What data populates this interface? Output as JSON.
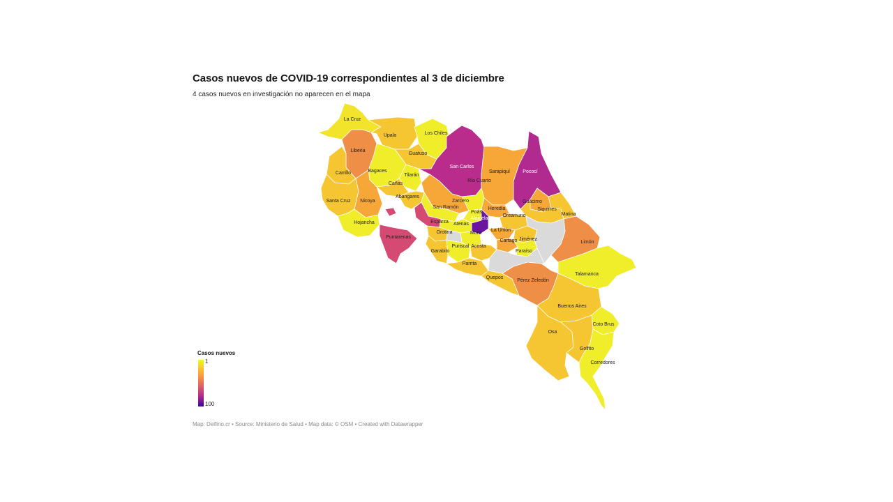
{
  "header": {
    "title": "Casos nuevos de COVID-19 correspondientes al 3 de diciembre",
    "subtitle": "4 casos nuevos en investigación no aparecen en el mapa"
  },
  "legend": {
    "title": "Casos nuevos",
    "min": "1",
    "max": "100",
    "colors": [
      "#f0f921",
      "#fca636",
      "#e16462",
      "#b12a90",
      "#3b049a"
    ]
  },
  "footer": {
    "text": "Map: Delfino.cr • Source: Ministerio de Salud • Map data: © OSM • Created with Datawrapper"
  },
  "map": {
    "cantons": [
      {
        "key": "la_cruz",
        "name": "La Cruz"
      },
      {
        "key": "upala",
        "name": "Upala"
      },
      {
        "key": "los_chiles",
        "name": "Los Chiles"
      },
      {
        "key": "liberia",
        "name": "Liberia"
      },
      {
        "key": "guatuso",
        "name": "Guatuso"
      },
      {
        "key": "san_carlos",
        "name": "San Carlos"
      },
      {
        "key": "sarapiqui",
        "name": "Sarapiquí"
      },
      {
        "key": "pococi",
        "name": "Pococí"
      },
      {
        "key": "carrillo",
        "name": "Carrillo"
      },
      {
        "key": "bagaces",
        "name": "Bagaces"
      },
      {
        "key": "tilaran",
        "name": "Tilarán"
      },
      {
        "key": "canas",
        "name": "Cañas"
      },
      {
        "key": "rio_cuarto",
        "name": "Río Cuarto"
      },
      {
        "key": "santa_cruz",
        "name": "Santa Cruz"
      },
      {
        "key": "nicoya",
        "name": "Nicoya"
      },
      {
        "key": "abangares",
        "name": "Abangares"
      },
      {
        "key": "zarcero",
        "name": "Zarcero"
      },
      {
        "key": "guacimo",
        "name": "Guácimo"
      },
      {
        "key": "san_ramon",
        "name": "San Ramón"
      },
      {
        "key": "heredia",
        "name": "Heredia"
      },
      {
        "key": "siquirres",
        "name": "Siquirres"
      },
      {
        "key": "poas",
        "name": "Poás"
      },
      {
        "key": "matina",
        "name": "Matina"
      },
      {
        "key": "hojancha",
        "name": "Hojancha"
      },
      {
        "key": "alajuela",
        "name": "Alajuela"
      },
      {
        "key": "oreamuno",
        "name": "Oreamuno"
      },
      {
        "key": "esparza",
        "name": "Esparza"
      },
      {
        "key": "atenas",
        "name": "Atenas"
      },
      {
        "key": "la_union",
        "name": "La Unión"
      },
      {
        "key": "orotina",
        "name": "Orotina"
      },
      {
        "key": "mora",
        "name": "Mora"
      },
      {
        "key": "puntarenas",
        "name": "Puntarenas"
      },
      {
        "key": "jimenez",
        "name": "Jiménez"
      },
      {
        "key": "cartago",
        "name": "Cartago"
      },
      {
        "key": "limon",
        "name": "Limón"
      },
      {
        "key": "puriscal",
        "name": "Puriscal"
      },
      {
        "key": "acosta",
        "name": "Acosta"
      },
      {
        "key": "paraiso",
        "name": "Paraíso"
      },
      {
        "key": "garabito",
        "name": "Garabito"
      },
      {
        "key": "parrita",
        "name": "Parrita"
      },
      {
        "key": "talamanca",
        "name": "Talamanca"
      },
      {
        "key": "quepos",
        "name": "Quepos"
      },
      {
        "key": "perez_zeledon",
        "name": "Pérez Zeledón"
      },
      {
        "key": "buenos_aires",
        "name": "Buenos Aires"
      },
      {
        "key": "coto_brus",
        "name": "Coto Brus"
      },
      {
        "key": "osa",
        "name": "Osa"
      },
      {
        "key": "golfito",
        "name": "Golfito"
      },
      {
        "key": "corredores",
        "name": "Corredores"
      }
    ]
  }
}
